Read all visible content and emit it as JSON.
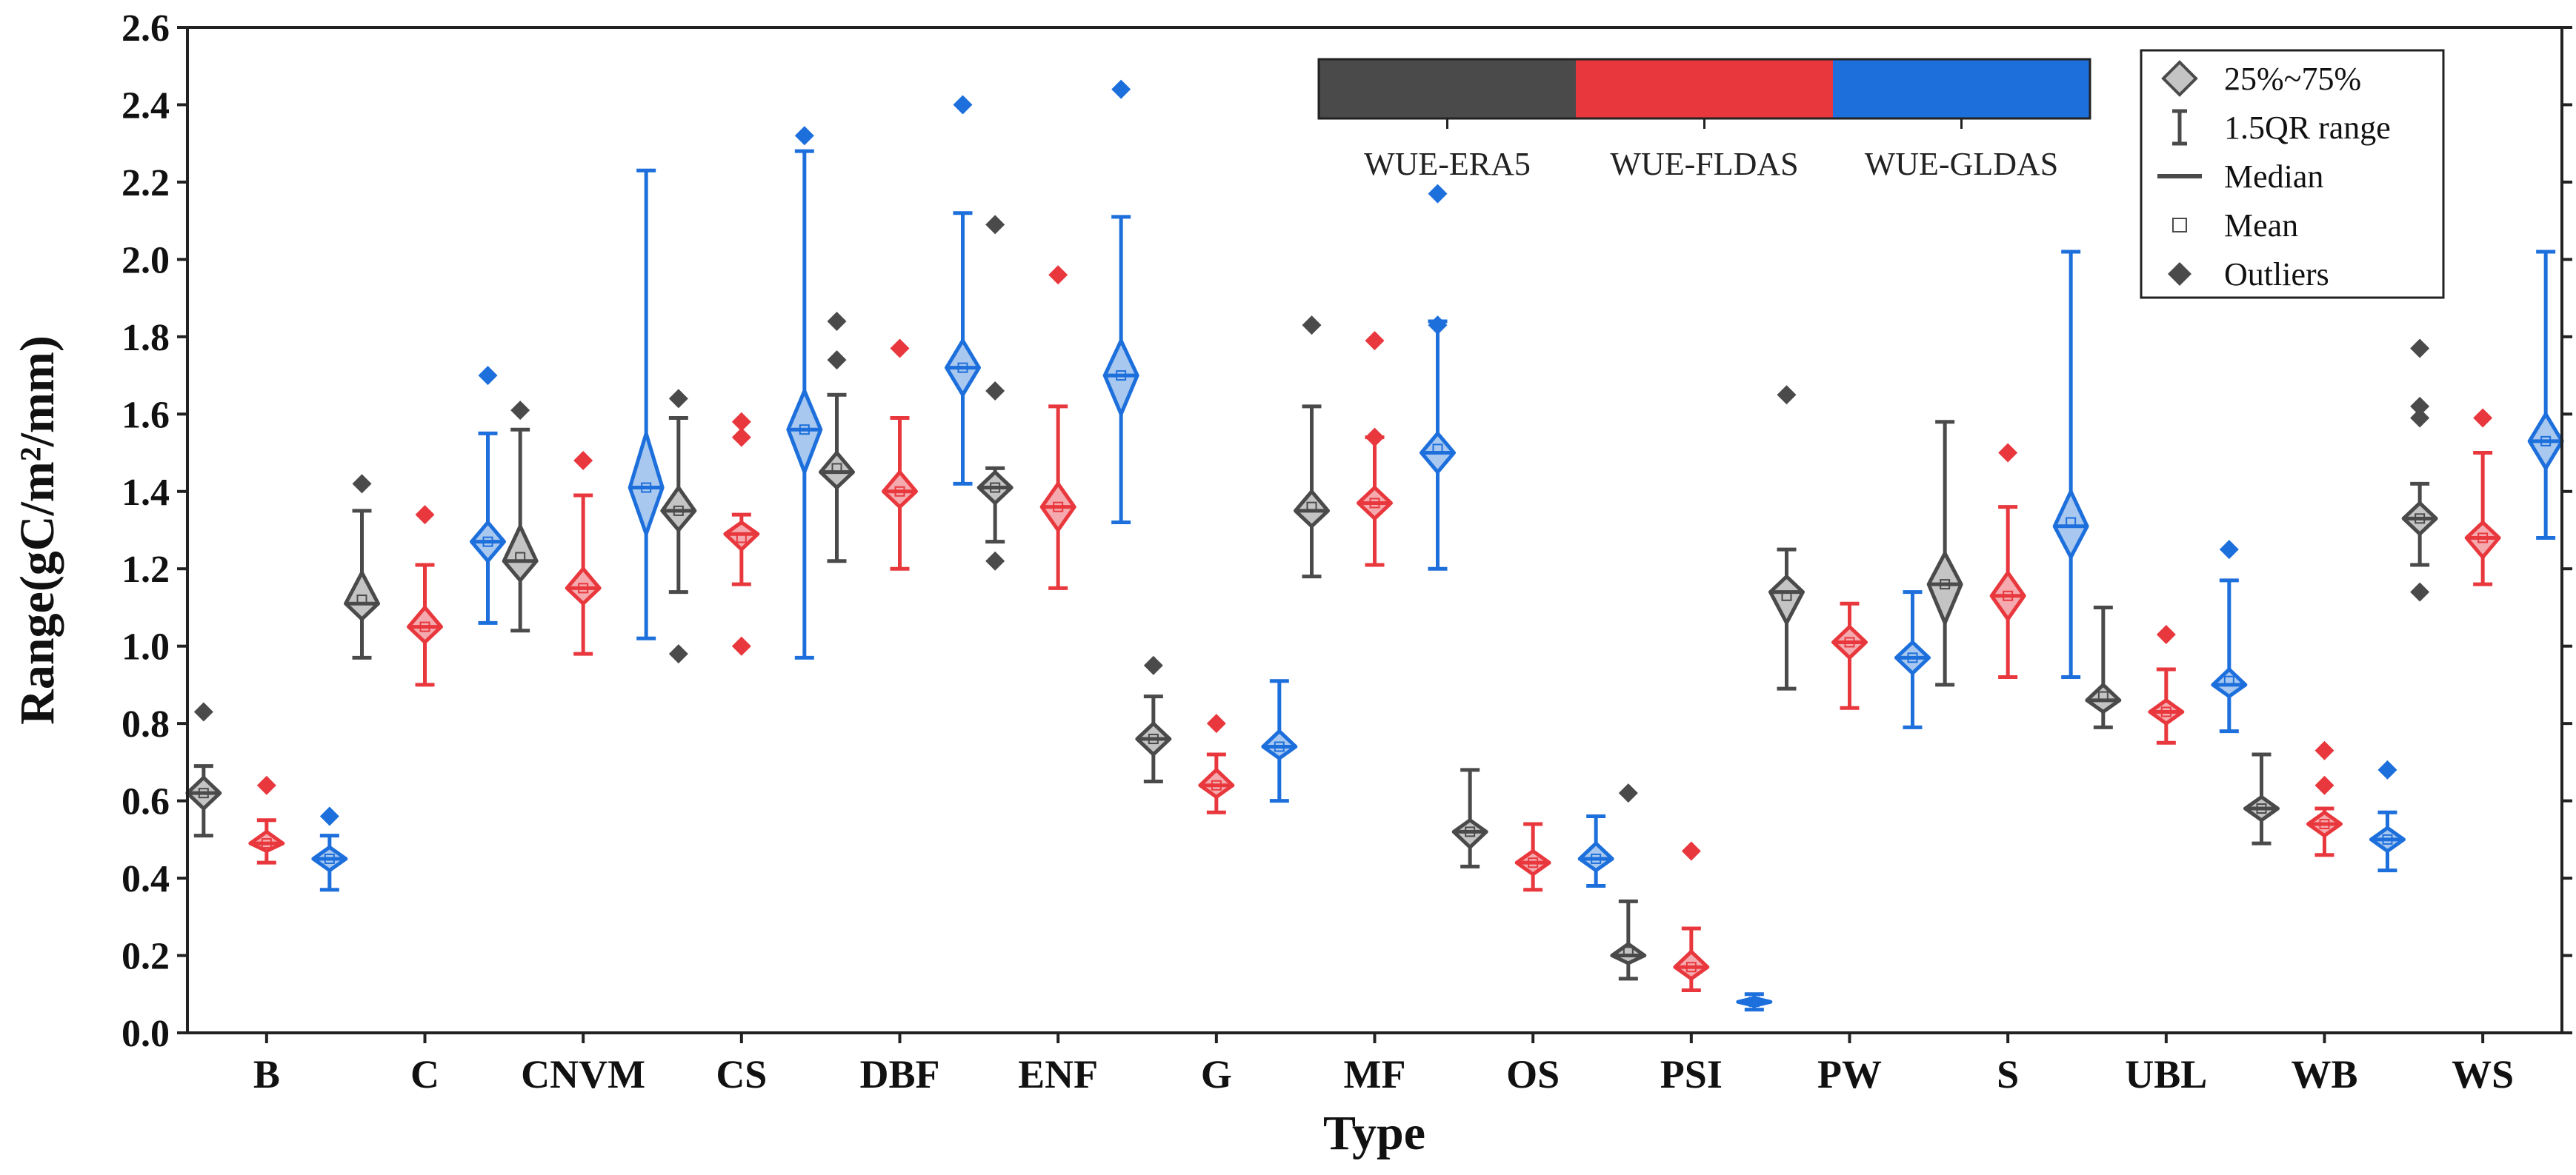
{
  "chart_data": {
    "type": "box",
    "ylabel": "Range(gC/m²/mm)",
    "xlabel": "Type",
    "ylim": [
      0.0,
      2.6
    ],
    "yticks": [
      "0.0",
      "0.2",
      "0.4",
      "0.6",
      "0.8",
      "1.0",
      "1.2",
      "1.4",
      "1.6",
      "1.8",
      "2.0",
      "2.2",
      "2.4",
      "2.6"
    ],
    "categories": [
      "B",
      "C",
      "CNVM",
      "CS",
      "DBF",
      "ENF",
      "G",
      "MF",
      "OS",
      "PSI",
      "PW",
      "S",
      "UBL",
      "WB",
      "WS"
    ],
    "series": [
      {
        "name": "WUE-ERA5",
        "color": "#4a4a4a",
        "fill": "#c4c4c4",
        "boxes": [
          {
            "category": "B",
            "low": 0.51,
            "q1": 0.58,
            "median": 0.62,
            "q3": 0.66,
            "high": 0.69,
            "mean": 0.62,
            "outliers": [
              0.83
            ]
          },
          {
            "category": "C",
            "low": 0.97,
            "q1": 1.07,
            "median": 1.11,
            "q3": 1.19,
            "high": 1.35,
            "mean": 1.12,
            "outliers": [
              1.42
            ]
          },
          {
            "category": "CNVM",
            "low": 1.04,
            "q1": 1.17,
            "median": 1.22,
            "q3": 1.31,
            "high": 1.56,
            "mean": 1.23,
            "outliers": [
              1.61
            ]
          },
          {
            "category": "CS",
            "low": 1.14,
            "q1": 1.3,
            "median": 1.35,
            "q3": 1.41,
            "high": 1.59,
            "mean": 1.35,
            "outliers": [
              1.64,
              0.98
            ]
          },
          {
            "category": "DBF",
            "low": 1.22,
            "q1": 1.41,
            "median": 1.45,
            "q3": 1.5,
            "high": 1.65,
            "mean": 1.46,
            "outliers": [
              1.84,
              1.74
            ]
          },
          {
            "category": "ENF",
            "low": 1.27,
            "q1": 1.37,
            "median": 1.41,
            "q3": 1.45,
            "high": 1.46,
            "mean": 1.41,
            "outliers": [
              2.09,
              1.66,
              1.22
            ]
          },
          {
            "category": "G",
            "low": 0.65,
            "q1": 0.72,
            "median": 0.76,
            "q3": 0.8,
            "high": 0.87,
            "mean": 0.76,
            "outliers": [
              0.95
            ]
          },
          {
            "category": "MF",
            "low": 1.18,
            "q1": 1.31,
            "median": 1.35,
            "q3": 1.4,
            "high": 1.62,
            "mean": 1.36,
            "outliers": [
              1.83
            ]
          },
          {
            "category": "OS",
            "low": 0.43,
            "q1": 0.48,
            "median": 0.52,
            "q3": 0.55,
            "high": 0.68,
            "mean": 0.52,
            "outliers": []
          },
          {
            "category": "PSI",
            "low": 0.14,
            "q1": 0.18,
            "median": 0.2,
            "q3": 0.23,
            "high": 0.34,
            "mean": 0.21,
            "outliers": [
              0.62
            ]
          },
          {
            "category": "PW",
            "low": 0.89,
            "q1": 1.06,
            "median": 1.14,
            "q3": 1.18,
            "high": 1.25,
            "mean": 1.13,
            "outliers": [
              1.65
            ]
          },
          {
            "category": "S",
            "low": 0.9,
            "q1": 1.06,
            "median": 1.16,
            "q3": 1.24,
            "high": 1.58,
            "mean": 1.16,
            "outliers": []
          },
          {
            "category": "UBL",
            "low": 0.79,
            "q1": 0.83,
            "median": 0.86,
            "q3": 0.9,
            "high": 1.1,
            "mean": 0.87,
            "outliers": []
          },
          {
            "category": "WB",
            "low": 0.49,
            "q1": 0.55,
            "median": 0.58,
            "q3": 0.61,
            "high": 0.72,
            "mean": 0.58,
            "outliers": []
          },
          {
            "category": "WS",
            "low": 1.21,
            "q1": 1.29,
            "median": 1.33,
            "q3": 1.37,
            "high": 1.42,
            "mean": 1.33,
            "outliers": [
              1.77,
              1.62,
              1.59,
              1.14
            ]
          }
        ]
      },
      {
        "name": "WUE-FLDAS",
        "color": "#e8383d",
        "fill": "#f4aaae",
        "boxes": [
          {
            "category": "B",
            "low": 0.44,
            "q1": 0.47,
            "median": 0.49,
            "q3": 0.52,
            "high": 0.55,
            "mean": 0.49,
            "outliers": [
              0.64
            ]
          },
          {
            "category": "C",
            "low": 0.9,
            "q1": 1.01,
            "median": 1.05,
            "q3": 1.1,
            "high": 1.21,
            "mean": 1.05,
            "outliers": [
              1.34
            ]
          },
          {
            "category": "CNVM",
            "low": 0.98,
            "q1": 1.11,
            "median": 1.15,
            "q3": 1.2,
            "high": 1.39,
            "mean": 1.15,
            "outliers": [
              1.48
            ]
          },
          {
            "category": "CS",
            "low": 1.16,
            "q1": 1.25,
            "median": 1.29,
            "q3": 1.32,
            "high": 1.34,
            "mean": 1.28,
            "outliers": [
              1.58,
              1.54,
              1.0
            ]
          },
          {
            "category": "DBF",
            "low": 1.2,
            "q1": 1.36,
            "median": 1.4,
            "q3": 1.45,
            "high": 1.59,
            "mean": 1.4,
            "outliers": [
              1.77
            ]
          },
          {
            "category": "ENF",
            "low": 1.15,
            "q1": 1.3,
            "median": 1.36,
            "q3": 1.42,
            "high": 1.62,
            "mean": 1.36,
            "outliers": [
              1.96
            ]
          },
          {
            "category": "G",
            "low": 0.57,
            "q1": 0.61,
            "median": 0.64,
            "q3": 0.68,
            "high": 0.72,
            "mean": 0.64,
            "outliers": [
              0.8
            ]
          },
          {
            "category": "MF",
            "low": 1.21,
            "q1": 1.33,
            "median": 1.37,
            "q3": 1.41,
            "high": 1.54,
            "mean": 1.37,
            "outliers": [
              1.79,
              1.54
            ]
          },
          {
            "category": "OS",
            "low": 0.37,
            "q1": 0.41,
            "median": 0.44,
            "q3": 0.47,
            "high": 0.54,
            "mean": 0.44,
            "outliers": []
          },
          {
            "category": "PSI",
            "low": 0.11,
            "q1": 0.14,
            "median": 0.17,
            "q3": 0.21,
            "high": 0.27,
            "mean": 0.17,
            "outliers": [
              0.47
            ]
          },
          {
            "category": "PW",
            "low": 0.84,
            "q1": 0.97,
            "median": 1.01,
            "q3": 1.05,
            "high": 1.11,
            "mean": 1.01,
            "outliers": []
          },
          {
            "category": "S",
            "low": 0.92,
            "q1": 1.07,
            "median": 1.13,
            "q3": 1.19,
            "high": 1.36,
            "mean": 1.13,
            "outliers": [
              1.5
            ]
          },
          {
            "category": "UBL",
            "low": 0.75,
            "q1": 0.8,
            "median": 0.83,
            "q3": 0.86,
            "high": 0.94,
            "mean": 0.83,
            "outliers": [
              1.03
            ]
          },
          {
            "category": "WB",
            "low": 0.46,
            "q1": 0.51,
            "median": 0.54,
            "q3": 0.57,
            "high": 0.58,
            "mean": 0.54,
            "outliers": [
              0.73,
              0.64
            ]
          },
          {
            "category": "WS",
            "low": 1.16,
            "q1": 1.23,
            "median": 1.28,
            "q3": 1.32,
            "high": 1.5,
            "mean": 1.28,
            "outliers": [
              1.59
            ]
          }
        ]
      },
      {
        "name": "WUE-GLDAS",
        "color": "#1d6fdc",
        "fill": "#a9c8ef",
        "boxes": [
          {
            "category": "B",
            "low": 0.37,
            "q1": 0.42,
            "median": 0.45,
            "q3": 0.48,
            "high": 0.51,
            "mean": 0.45,
            "outliers": [
              0.56
            ]
          },
          {
            "category": "C",
            "low": 1.06,
            "q1": 1.22,
            "median": 1.27,
            "q3": 1.32,
            "high": 1.55,
            "mean": 1.27,
            "outliers": [
              1.7
            ]
          },
          {
            "category": "CNVM",
            "low": 1.02,
            "q1": 1.29,
            "median": 1.41,
            "q3": 1.55,
            "high": 2.23,
            "mean": 1.41,
            "outliers": []
          },
          {
            "category": "CS",
            "low": 0.97,
            "q1": 1.45,
            "median": 1.56,
            "q3": 1.66,
            "high": 2.28,
            "mean": 1.56,
            "outliers": [
              2.32
            ]
          },
          {
            "category": "DBF",
            "low": 1.42,
            "q1": 1.65,
            "median": 1.72,
            "q3": 1.79,
            "high": 2.12,
            "mean": 1.72,
            "outliers": [
              2.4
            ]
          },
          {
            "category": "ENF",
            "low": 1.32,
            "q1": 1.6,
            "median": 1.7,
            "q3": 1.79,
            "high": 2.11,
            "mean": 1.7,
            "outliers": [
              2.44
            ]
          },
          {
            "category": "G",
            "low": 0.6,
            "q1": 0.71,
            "median": 0.74,
            "q3": 0.78,
            "high": 0.91,
            "mean": 0.74,
            "outliers": []
          },
          {
            "category": "MF",
            "low": 1.2,
            "q1": 1.45,
            "median": 1.5,
            "q3": 1.55,
            "high": 1.84,
            "mean": 1.51,
            "outliers": [
              2.17,
              1.83
            ]
          },
          {
            "category": "OS",
            "low": 0.38,
            "q1": 0.42,
            "median": 0.45,
            "q3": 0.49,
            "high": 0.56,
            "mean": 0.45,
            "outliers": []
          },
          {
            "category": "PSI",
            "low": 0.06,
            "q1": 0.07,
            "median": 0.08,
            "q3": 0.09,
            "high": 0.1,
            "mean": 0.08,
            "outliers": []
          },
          {
            "category": "PW",
            "low": 0.79,
            "q1": 0.93,
            "median": 0.97,
            "q3": 1.01,
            "high": 1.14,
            "mean": 0.97,
            "outliers": []
          },
          {
            "category": "S",
            "low": 0.92,
            "q1": 1.23,
            "median": 1.31,
            "q3": 1.4,
            "high": 2.02,
            "mean": 1.32,
            "outliers": []
          },
          {
            "category": "UBL",
            "low": 0.78,
            "q1": 0.87,
            "median": 0.9,
            "q3": 0.94,
            "high": 1.17,
            "mean": 0.91,
            "outliers": [
              1.25
            ]
          },
          {
            "category": "WB",
            "low": 0.42,
            "q1": 0.47,
            "median": 0.5,
            "q3": 0.53,
            "high": 0.57,
            "mean": 0.5,
            "outliers": [
              0.68
            ]
          },
          {
            "category": "WS",
            "low": 1.28,
            "q1": 1.46,
            "median": 1.53,
            "q3": 1.6,
            "high": 2.02,
            "mean": 1.53,
            "outliers": []
          }
        ]
      }
    ],
    "legend": {
      "position": "top-right",
      "items": [
        {
          "label": "25%~75%",
          "symbol": "diamond-box"
        },
        {
          "label": "1.5QR range",
          "symbol": "whisker"
        },
        {
          "label": "Median",
          "symbol": "line"
        },
        {
          "label": "Mean",
          "symbol": "square"
        },
        {
          "label": "Outliers",
          "symbol": "diamond"
        }
      ]
    },
    "colorbar": {
      "position": "top",
      "labels": [
        "WUE-ERA5",
        "WUE-FLDAS",
        "WUE-GLDAS"
      ],
      "colors": [
        "#4a4a4a",
        "#e8383d",
        "#1d6fdc"
      ]
    }
  }
}
